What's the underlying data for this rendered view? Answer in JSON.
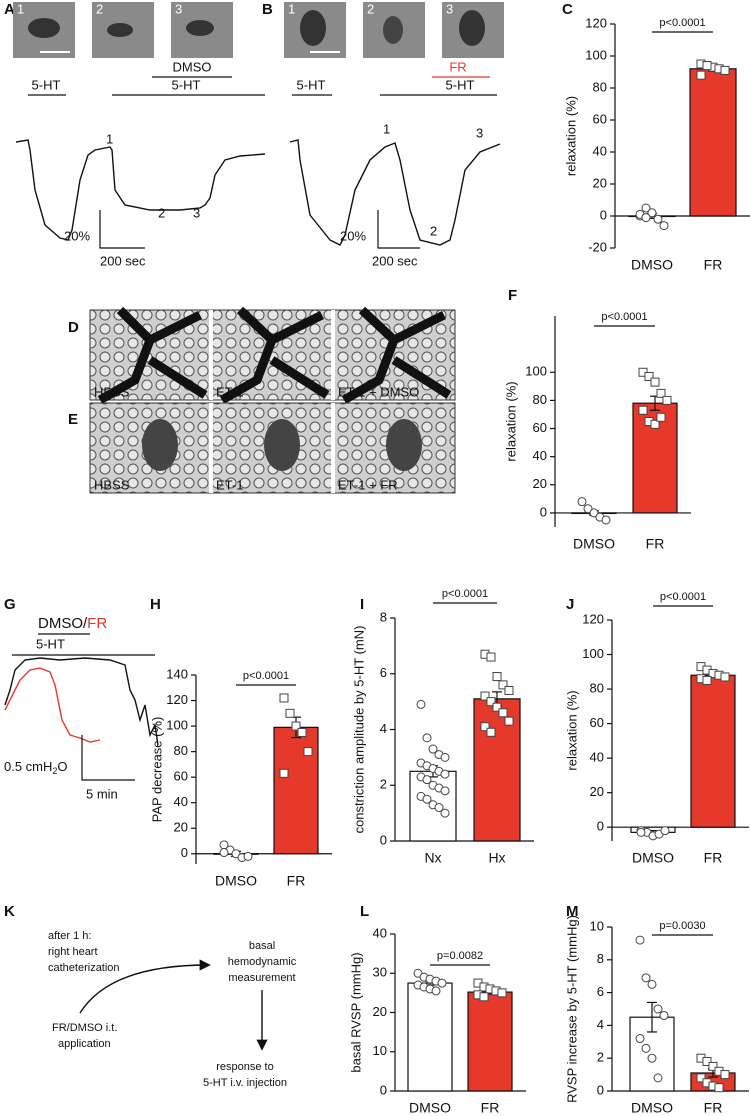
{
  "chart_data": [
    {
      "type": "bar",
      "panel": "C",
      "ylabel": "relaxation (%)",
      "categories": [
        "DMSO",
        "FR"
      ],
      "values": [
        0,
        92
      ],
      "errors": [
        1.5,
        1.5
      ],
      "colors": [
        "#ffffff",
        "#e5392b"
      ],
      "markers": [
        "circle",
        "square"
      ],
      "points": [
        [
          0,
          5,
          2,
          -2,
          -6,
          1,
          -1
        ],
        [
          95,
          94,
          93,
          92,
          91,
          88,
          94
        ]
      ],
      "ylim": [
        -20,
        120
      ],
      "yticks": [
        -20,
        0,
        20,
        40,
        60,
        80,
        100,
        120
      ],
      "annotation": "p<0.0001"
    },
    {
      "type": "bar",
      "panel": "F",
      "ylabel": "relaxation (%)",
      "categories": [
        "DMSO",
        "FR"
      ],
      "values": [
        0,
        78
      ],
      "errors": [
        1.5,
        5
      ],
      "colors": [
        "#ffffff",
        "#e5392b"
      ],
      "markers": [
        "circle",
        "square"
      ],
      "points": [
        [
          8,
          3,
          0,
          -3,
          -5
        ],
        [
          100,
          97,
          93,
          85,
          80,
          73,
          65,
          63,
          68
        ]
      ],
      "ylim": [
        -10,
        140
      ],
      "yticks": [
        0,
        20,
        40,
        60,
        80,
        100
      ],
      "annotation": "p<0.0001"
    },
    {
      "type": "bar",
      "panel": "H",
      "ylabel": "PAP decrease (%)",
      "categories": [
        "DMSO",
        "FR"
      ],
      "values": [
        0,
        99
      ],
      "errors": [
        2,
        8
      ],
      "colors": [
        "#ffffff",
        "#e5392b"
      ],
      "markers": [
        "circle",
        "square"
      ],
      "points": [
        [
          7,
          3,
          0,
          -3,
          -2,
          1
        ],
        [
          122,
          110,
          100,
          95,
          80,
          63
        ]
      ],
      "ylim": [
        -8,
        140
      ],
      "yticks": [
        0,
        20,
        40,
        60,
        80,
        100,
        120,
        140
      ],
      "annotation": "p<0.0001"
    },
    {
      "type": "bar",
      "panel": "I",
      "ylabel": "constriction amplitude by 5-HT (mN)",
      "categories": [
        "Nx",
        "Hx"
      ],
      "values": [
        2.5,
        5.1
      ],
      "errors": [
        0.2,
        0.25
      ],
      "colors": [
        "#ffffff",
        "#e5392b"
      ],
      "markers": [
        "circle",
        "square"
      ],
      "points": [
        [
          4.9,
          3.7,
          3.3,
          3.1,
          3.0,
          2.8,
          2.7,
          2.6,
          2.5,
          2.4,
          2.3,
          2.2,
          2.0,
          1.9,
          1.8,
          1.6,
          1.5,
          1.3,
          1.2,
          1.0
        ],
        [
          6.7,
          6.6,
          5.9,
          5.6,
          5.4,
          5.2,
          5.0,
          4.8,
          4.6,
          4.3,
          4.1,
          3.9
        ]
      ],
      "ylim": [
        0,
        8
      ],
      "yticks": [
        0,
        2,
        4,
        6,
        8
      ],
      "annotation": "p<0.0001"
    },
    {
      "type": "bar",
      "panel": "J",
      "ylabel": "relaxation (%)",
      "categories": [
        "DMSO",
        "FR"
      ],
      "values": [
        -3,
        88
      ],
      "errors": [
        1,
        1
      ],
      "colors": [
        "#ffffff",
        "#e5392b"
      ],
      "markers": [
        "circle",
        "square"
      ],
      "points": [
        [
          -2,
          -3,
          -5,
          -4,
          -2,
          -3
        ],
        [
          93,
          91,
          89,
          88,
          87,
          86,
          85
        ]
      ],
      "ylim": [
        -8,
        120
      ],
      "yticks": [
        0,
        20,
        40,
        60,
        80,
        100,
        120
      ],
      "annotation": "p<0.0001"
    },
    {
      "type": "bar",
      "panel": "L",
      "ylabel": "basal RVSP (mmHg)",
      "categories": [
        "DMSO",
        "FR"
      ],
      "values": [
        27.5,
        25.2
      ],
      "errors": [
        0.5,
        0.5
      ],
      "colors": [
        "#ffffff",
        "#e5392b"
      ],
      "markers": [
        "circle",
        "square"
      ],
      "points": [
        [
          30,
          29,
          28.5,
          28,
          27.5,
          27,
          26.5,
          26,
          25.5
        ],
        [
          27.5,
          26.5,
          26,
          25.5,
          25,
          24.5,
          24
        ]
      ],
      "ylim": [
        0,
        40
      ],
      "yticks": [
        0,
        10,
        20,
        30,
        40
      ],
      "annotation": "p=0.0082"
    },
    {
      "type": "bar",
      "panel": "M",
      "ylabel": "RVSP increase by 5-HT (mmHg)",
      "categories": [
        "DMSO",
        "FR"
      ],
      "values": [
        4.5,
        1.1
      ],
      "errors": [
        0.9,
        0.25
      ],
      "colors": [
        "#ffffff",
        "#e5392b"
      ],
      "markers": [
        "circle",
        "square"
      ],
      "points": [
        [
          9.2,
          6.9,
          6.5,
          5.0,
          4.6,
          3.2,
          2.6,
          2.0,
          0.8
        ],
        [
          2.0,
          1.8,
          1.5,
          1.2,
          1.0,
          0.8,
          0.5,
          0.3,
          0.2
        ]
      ],
      "ylim": [
        0,
        10
      ],
      "yticks": [
        0,
        2,
        4,
        6,
        8,
        10
      ],
      "annotation": "p=0.0030"
    }
  ],
  "panels": {
    "A": {
      "letter": "A",
      "image_labels": [
        "1",
        "2",
        "3"
      ],
      "stimulus_1": "5-HT",
      "vehicle": "DMSO",
      "stimulus_2": "5-HT",
      "trace_labels": [
        "1",
        "2",
        "3"
      ],
      "scale_y": "20%",
      "scale_x": "200 sec"
    },
    "B": {
      "letter": "B",
      "image_labels": [
        "1",
        "2",
        "3"
      ],
      "stimulus_1": "5-HT",
      "vehicle": "FR",
      "stimulus_2": "5-HT",
      "trace_labels": [
        "1",
        "2",
        "3"
      ],
      "scale_y": "20%",
      "scale_x": "200 sec"
    },
    "D": {
      "letter": "D",
      "image_labels": [
        "HBSS",
        "ET-1",
        "ET-1 + DMSO"
      ]
    },
    "E": {
      "letter": "E",
      "image_labels": [
        "HBSS",
        "ET-1",
        "ET-1 + FR"
      ]
    },
    "G": {
      "letter": "G",
      "vehicle": "DMSO",
      "separator": "/",
      "drug": "FR",
      "stimulus": "5-HT",
      "scale_y": "0.5 cmH",
      "scale_y_sub": "2",
      "scale_y_end": "O",
      "scale_x": "5 min"
    },
    "K": {
      "letter": "K",
      "step_1": [
        "after 1 h:",
        "right heart",
        "catheterization"
      ],
      "step_0": [
        "FR/DMSO i.t.",
        "application"
      ],
      "step_2": [
        "basal",
        "hemodynamic",
        "measurement"
      ],
      "step_3": [
        "response to",
        "5-HT i.v. injection"
      ]
    }
  }
}
